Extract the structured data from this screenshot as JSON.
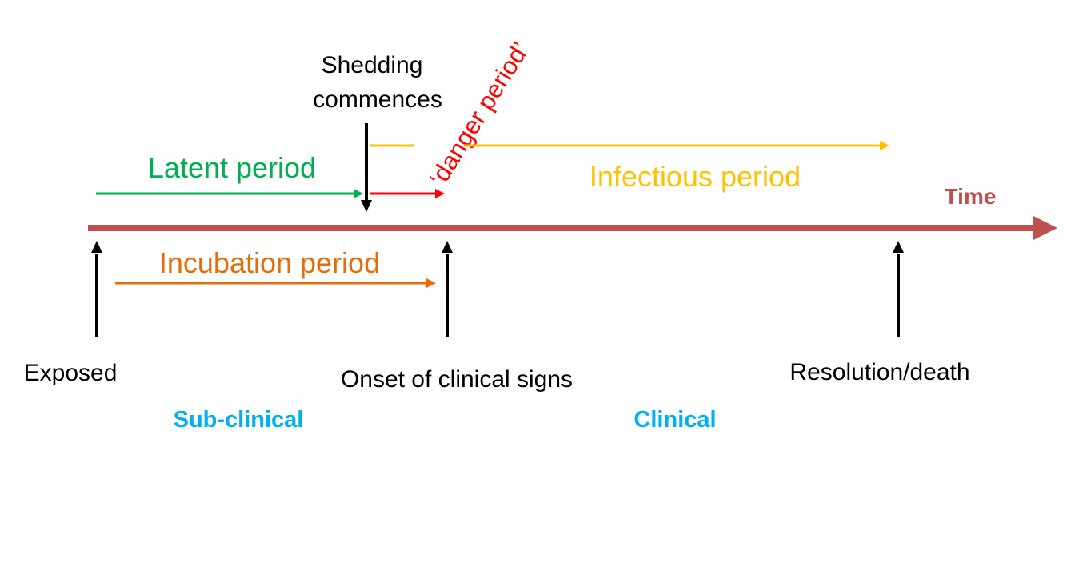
{
  "labels": {
    "shedding_line1": "Shedding",
    "shedding_line2": "commences",
    "danger_period": "‘danger period’",
    "latent_period": "Latent period",
    "infectious_period": "Infectious period",
    "time": "Time",
    "incubation_period": "Incubation period",
    "exposed": "Exposed",
    "onset": "Onset of clinical signs",
    "resolution": "Resolution/death",
    "sub_clinical": "Sub-clinical",
    "clinical": "Clinical"
  },
  "colors": {
    "timeline": "#c0504d",
    "latent": "#00b050",
    "infectious": "#ffc000",
    "danger": "#ff0000",
    "incubation": "#e46c0a",
    "phase": "#00b0f0",
    "marker": "#000000"
  }
}
